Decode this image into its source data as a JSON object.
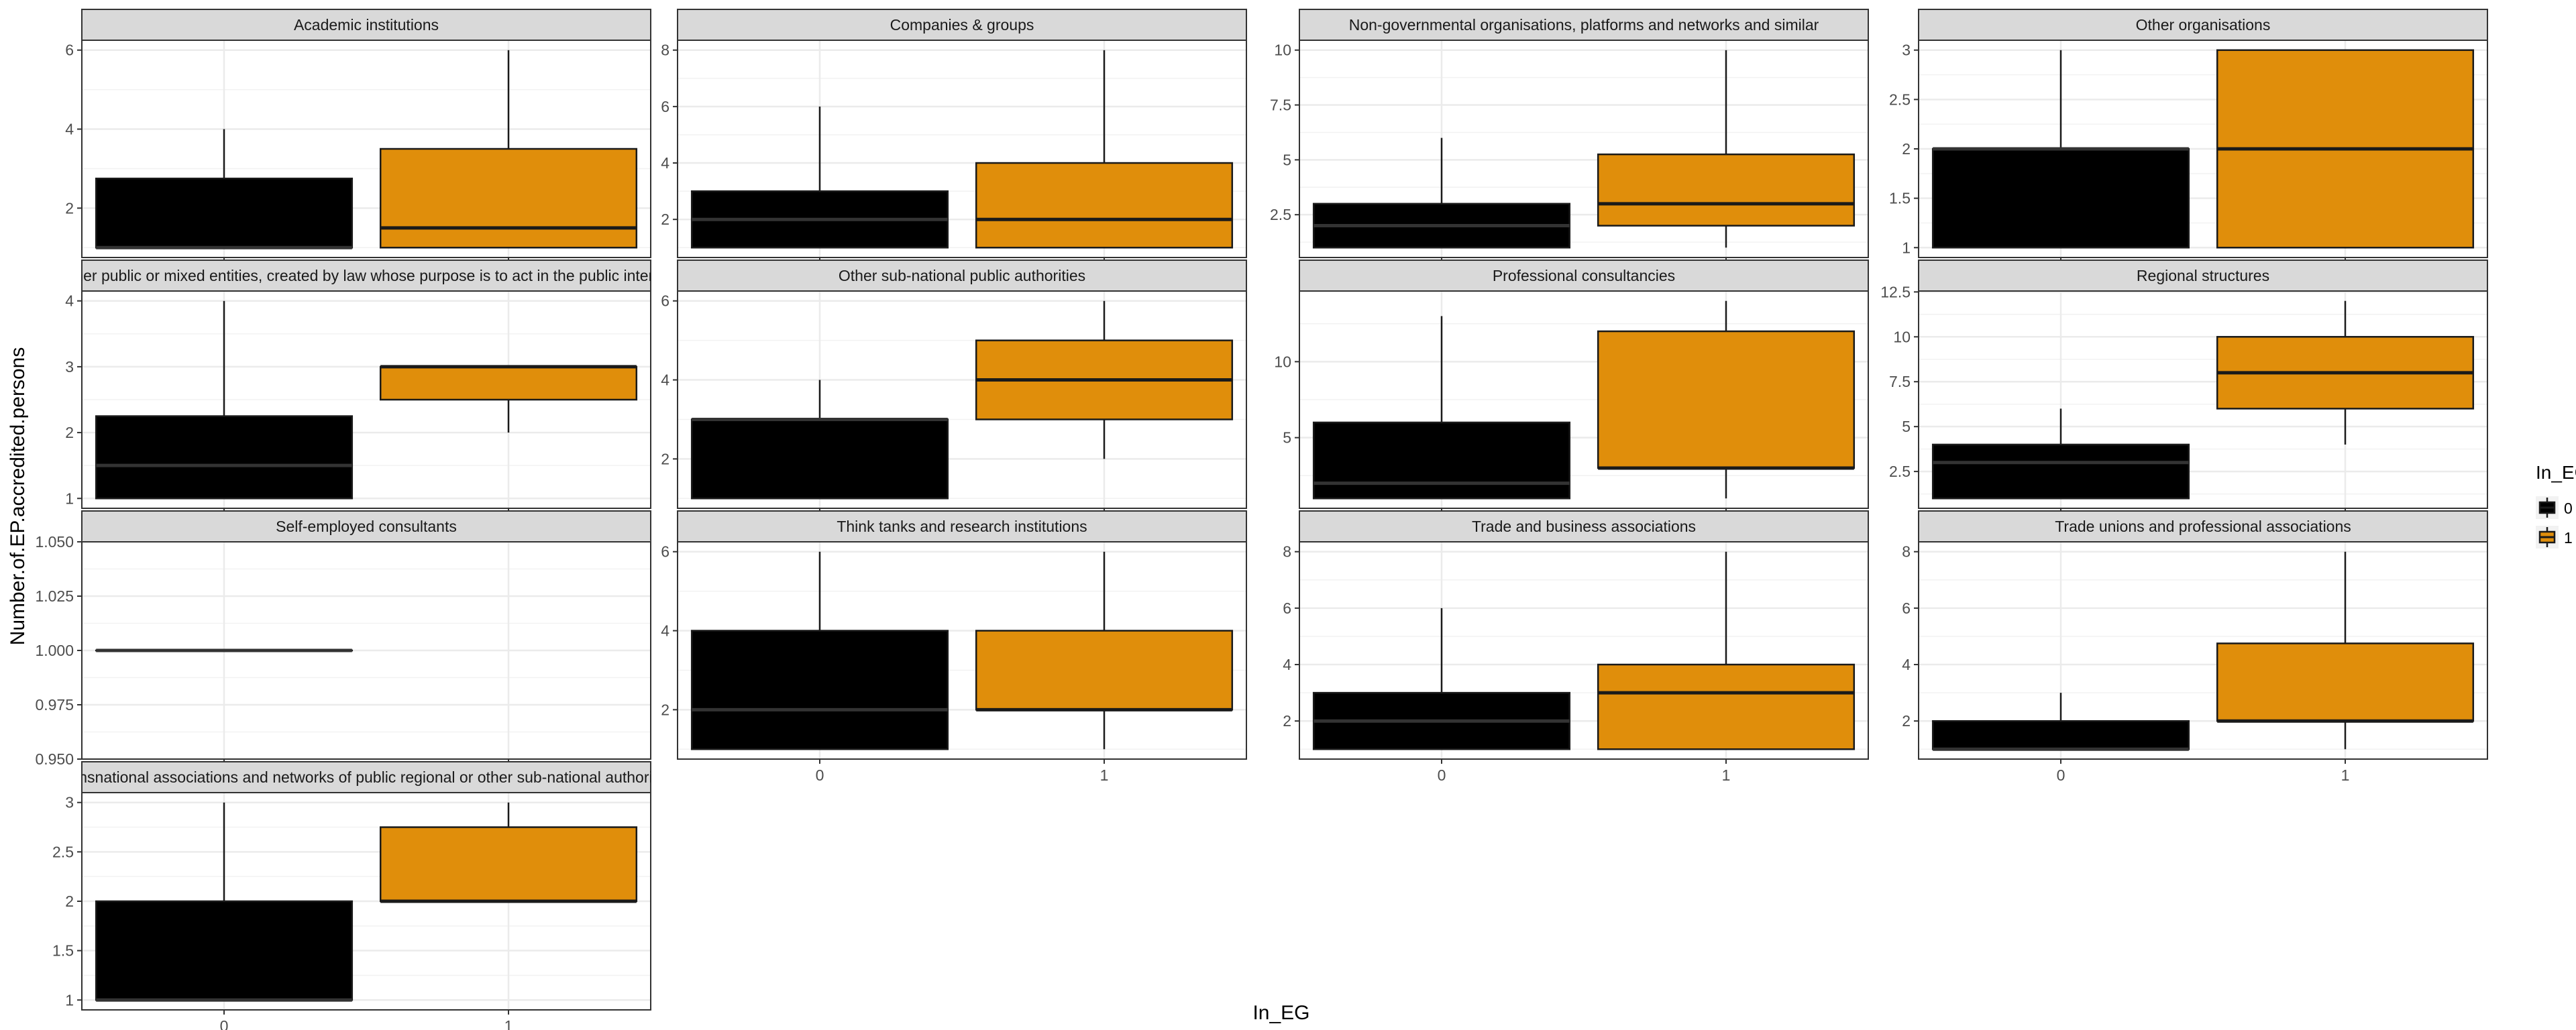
{
  "chart_data": {
    "type": "boxplot",
    "xlabel": "In_EG",
    "ylabel": "Number.of.EP.accredited.persons",
    "categories": [
      "0",
      "1"
    ],
    "legend": {
      "title": "In_EG",
      "placement": "right",
      "items": [
        {
          "label": "0",
          "color": "#000000"
        },
        {
          "label": "1",
          "color": "#E08E0B"
        }
      ]
    },
    "grid": true,
    "panels": [
      {
        "title": "Academic institutions",
        "yticks": [
          2,
          4,
          6
        ],
        "ylim": [
          0.75,
          6.25
        ],
        "boxes": [
          {
            "category": "0",
            "min": 1,
            "q1": 1,
            "median": 1,
            "q3": 2.75,
            "max": 4
          },
          {
            "category": "1",
            "min": 1,
            "q1": 1,
            "median": 1.5,
            "q3": 3.5,
            "max": 6
          }
        ]
      },
      {
        "title": "Companies & groups",
        "yticks": [
          2,
          4,
          6,
          8
        ],
        "ylim": [
          0.65,
          8.35
        ],
        "boxes": [
          {
            "category": "0",
            "min": 1,
            "q1": 1,
            "median": 2,
            "q3": 3,
            "max": 6
          },
          {
            "category": "1",
            "min": 1,
            "q1": 1,
            "median": 2,
            "q3": 4,
            "max": 8
          }
        ]
      },
      {
        "title": "Non-governmental organisations, platforms and networks and similar",
        "yticks": [
          2.5,
          5.0,
          7.5,
          10.0
        ],
        "ylim": [
          0.55,
          10.45
        ],
        "boxes": [
          {
            "category": "0",
            "min": 1,
            "q1": 1,
            "median": 2,
            "q3": 3,
            "max": 6
          },
          {
            "category": "1",
            "min": 1,
            "q1": 2,
            "median": 3,
            "q3": 5.25,
            "max": 10
          }
        ]
      },
      {
        "title": "Other organisations",
        "yticks": [
          1.0,
          1.5,
          2.0,
          2.5,
          3.0
        ],
        "ylim": [
          0.9,
          3.1
        ],
        "boxes": [
          {
            "category": "0",
            "min": 1,
            "q1": 1,
            "median": 2,
            "q3": 2,
            "max": 3
          },
          {
            "category": "1",
            "min": 1,
            "q1": 1,
            "median": 2,
            "q3": 3,
            "max": 3
          }
        ]
      },
      {
        "title": "Other public or mixed entities, created by law whose purpose is to act in the public interest",
        "yticks": [
          1,
          2,
          3,
          4
        ],
        "ylim": [
          0.85,
          4.15
        ],
        "boxes": [
          {
            "category": "0",
            "min": 1,
            "q1": 1,
            "median": 1.5,
            "q3": 2.25,
            "max": 4
          },
          {
            "category": "1",
            "min": 2,
            "q1": 2.5,
            "median": 3,
            "q3": 3,
            "max": 3
          }
        ]
      },
      {
        "title": "Other sub-national public authorities",
        "yticks": [
          2,
          4,
          6
        ],
        "ylim": [
          0.75,
          6.25
        ],
        "boxes": [
          {
            "category": "0",
            "min": 1,
            "q1": 1,
            "median": 3,
            "q3": 3,
            "max": 4
          },
          {
            "category": "1",
            "min": 2,
            "q1": 3,
            "median": 4,
            "q3": 5,
            "max": 6
          }
        ]
      },
      {
        "title": "Professional consultancies",
        "yticks": [
          5,
          10
        ],
        "ylim": [
          0.35,
          14.65
        ],
        "boxes": [
          {
            "category": "0",
            "min": 1,
            "q1": 1,
            "median": 2,
            "q3": 6,
            "max": 13
          },
          {
            "category": "1",
            "min": 1,
            "q1": 3,
            "median": 3,
            "q3": 12,
            "max": 14
          }
        ]
      },
      {
        "title": "Regional structures",
        "yticks": [
          2.5,
          5.0,
          7.5,
          10.0,
          12.5
        ],
        "ylim": [
          0.45,
          12.55
        ],
        "boxes": [
          {
            "category": "0",
            "min": 1,
            "q1": 1,
            "median": 3,
            "q3": 4,
            "max": 6
          },
          {
            "category": "1",
            "min": 4,
            "q1": 6,
            "median": 8,
            "q3": 10,
            "max": 12
          }
        ]
      },
      {
        "title": "Self-employed consultants",
        "yticks": [
          0.95,
          0.975,
          1.0,
          1.025,
          1.05
        ],
        "ytick_labels": [
          "0.950",
          "0.975",
          "1.000",
          "1.025",
          "1.050"
        ],
        "ylim": [
          0.95,
          1.05
        ],
        "boxes": [
          {
            "category": "0",
            "min": 1,
            "q1": 1,
            "median": 1,
            "q3": 1,
            "max": 1
          }
        ]
      },
      {
        "title": "Think tanks and research institutions",
        "yticks": [
          2,
          4,
          6
        ],
        "ylim": [
          0.75,
          6.25
        ],
        "boxes": [
          {
            "category": "0",
            "min": 1,
            "q1": 1,
            "median": 2,
            "q3": 4,
            "max": 6
          },
          {
            "category": "1",
            "min": 1,
            "q1": 2,
            "median": 2,
            "q3": 4,
            "max": 6
          }
        ]
      },
      {
        "title": "Trade and business associations",
        "yticks": [
          2,
          4,
          6,
          8
        ],
        "ylim": [
          0.65,
          8.35
        ],
        "boxes": [
          {
            "category": "0",
            "min": 1,
            "q1": 1,
            "median": 2,
            "q3": 3,
            "max": 6
          },
          {
            "category": "1",
            "min": 1,
            "q1": 1,
            "median": 3,
            "q3": 4,
            "max": 8
          }
        ]
      },
      {
        "title": "Trade unions and professional associations",
        "yticks": [
          2,
          4,
          6,
          8
        ],
        "ylim": [
          0.65,
          8.35
        ],
        "boxes": [
          {
            "category": "0",
            "min": 1,
            "q1": 1,
            "median": 1,
            "q3": 2,
            "max": 3
          },
          {
            "category": "1",
            "min": 1,
            "q1": 2,
            "median": 2,
            "q3": 4.75,
            "max": 8
          }
        ]
      },
      {
        "title": "Transnational associations and networks of public regional or other sub-national authorities",
        "yticks": [
          1.0,
          1.5,
          2.0,
          2.5,
          3.0
        ],
        "ylim": [
          0.9,
          3.1
        ],
        "boxes": [
          {
            "category": "0",
            "min": 1,
            "q1": 1,
            "median": 1,
            "q3": 2,
            "max": 3
          },
          {
            "category": "1",
            "min": 2,
            "q1": 2,
            "median": 2,
            "q3": 2.75,
            "max": 3
          }
        ]
      }
    ]
  }
}
